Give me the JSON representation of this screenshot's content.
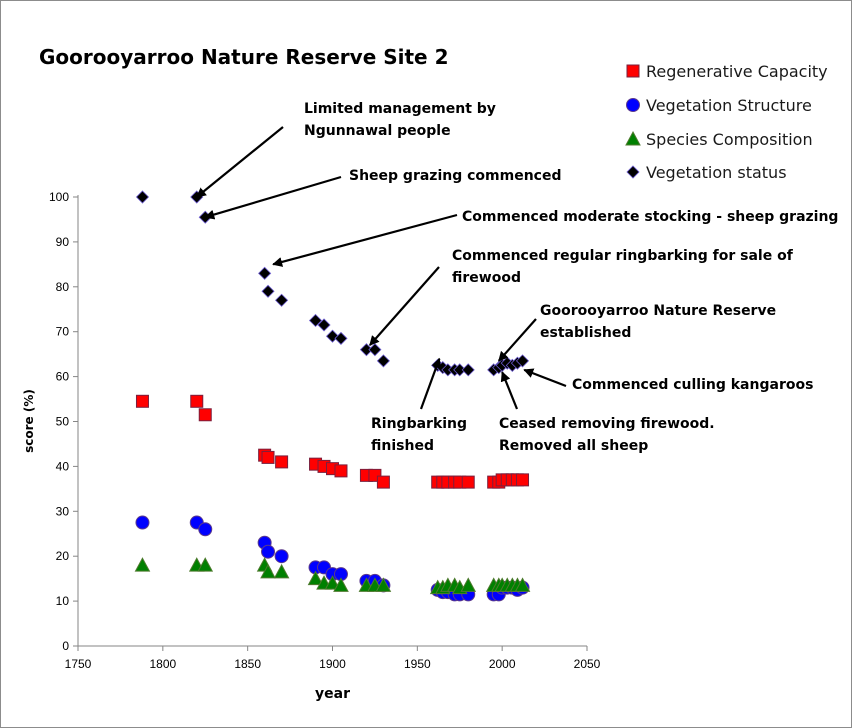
{
  "chart_data": {
    "type": "scatter",
    "title": "Goorooyarroo Nature Reserve Site 2",
    "xlabel": "year",
    "ylabel": "score (%)",
    "xlim": [
      1750,
      2050
    ],
    "ylim": [
      0,
      100
    ],
    "x_ticks": [
      "1750",
      "1800",
      "1850",
      "1900",
      "1950",
      "2000",
      "2050"
    ],
    "y_ticks": [
      "0",
      "10",
      "20",
      "30",
      "40",
      "50",
      "60",
      "70",
      "80",
      "90",
      "100"
    ],
    "grid": false,
    "legend_position": "top-right",
    "series": [
      {
        "name": "Regenerative Capacity",
        "marker": "square",
        "color": "#ff0000",
        "points": [
          [
            1788,
            54.5
          ],
          [
            1820,
            54.5
          ],
          [
            1825,
            51.5
          ],
          [
            1860,
            42.5
          ],
          [
            1862,
            42
          ],
          [
            1870,
            41
          ],
          [
            1890,
            40.5
          ],
          [
            1895,
            40
          ],
          [
            1900,
            39.5
          ],
          [
            1905,
            39
          ],
          [
            1920,
            38
          ],
          [
            1925,
            38
          ],
          [
            1930,
            36.5
          ],
          [
            1962,
            36.5
          ],
          [
            1965,
            36.5
          ],
          [
            1968,
            36.5
          ],
          [
            1972,
            36.5
          ],
          [
            1975,
            36.5
          ],
          [
            1980,
            36.5
          ],
          [
            1995,
            36.5
          ],
          [
            1998,
            36.5
          ],
          [
            2000,
            37
          ],
          [
            2003,
            37
          ],
          [
            2006,
            37
          ],
          [
            2009,
            37
          ],
          [
            2012,
            37
          ]
        ]
      },
      {
        "name": "Vegetation Structure",
        "marker": "circle",
        "color": "#0000ff",
        "points": [
          [
            1788,
            27.5
          ],
          [
            1820,
            27.5
          ],
          [
            1825,
            26
          ],
          [
            1860,
            23
          ],
          [
            1862,
            21
          ],
          [
            1870,
            20
          ],
          [
            1890,
            17.5
          ],
          [
            1895,
            17.5
          ],
          [
            1900,
            16
          ],
          [
            1905,
            16
          ],
          [
            1920,
            14.5
          ],
          [
            1925,
            14.5
          ],
          [
            1930,
            13.5
          ],
          [
            1962,
            12.5
          ],
          [
            1965,
            12
          ],
          [
            1968,
            12
          ],
          [
            1972,
            11.5
          ],
          [
            1975,
            11.5
          ],
          [
            1980,
            11.5
          ],
          [
            1995,
            11.5
          ],
          [
            1998,
            11.5
          ],
          [
            2000,
            13
          ],
          [
            2003,
            13
          ],
          [
            2006,
            13
          ],
          [
            2009,
            12.5
          ],
          [
            2012,
            13
          ]
        ]
      },
      {
        "name": "Species Composition",
        "marker": "triangle",
        "color": "#008000",
        "points": [
          [
            1788,
            18
          ],
          [
            1820,
            18
          ],
          [
            1825,
            18
          ],
          [
            1860,
            18
          ],
          [
            1862,
            16.5
          ],
          [
            1870,
            16.5
          ],
          [
            1890,
            15
          ],
          [
            1895,
            14
          ],
          [
            1900,
            14
          ],
          [
            1905,
            13.5
          ],
          [
            1920,
            13.5
          ],
          [
            1925,
            13.5
          ],
          [
            1930,
            13.5
          ],
          [
            1962,
            13
          ],
          [
            1965,
            13
          ],
          [
            1968,
            13.5
          ],
          [
            1972,
            13.5
          ],
          [
            1975,
            13
          ],
          [
            1980,
            13.5
          ],
          [
            1995,
            13.5
          ],
          [
            1998,
            13.5
          ],
          [
            2000,
            13.5
          ],
          [
            2003,
            13.5
          ],
          [
            2006,
            13.5
          ],
          [
            2009,
            13.5
          ],
          [
            2012,
            13.5
          ]
        ]
      },
      {
        "name": "Vegetation status",
        "marker": "diamond",
        "color": "#000000",
        "points": [
          [
            1788,
            100
          ],
          [
            1820,
            100
          ],
          [
            1825,
            95.5
          ],
          [
            1860,
            83
          ],
          [
            1862,
            79
          ],
          [
            1870,
            77
          ],
          [
            1890,
            72.5
          ],
          [
            1895,
            71.5
          ],
          [
            1900,
            69
          ],
          [
            1905,
            68.5
          ],
          [
            1920,
            66
          ],
          [
            1925,
            66
          ],
          [
            1930,
            63.5
          ],
          [
            1962,
            62.5
          ],
          [
            1965,
            62
          ],
          [
            1968,
            61.5
          ],
          [
            1972,
            61.5
          ],
          [
            1975,
            61.5
          ],
          [
            1980,
            61.5
          ],
          [
            1995,
            61.5
          ],
          [
            1998,
            62
          ],
          [
            2000,
            62.5
          ],
          [
            2003,
            63
          ],
          [
            2006,
            62.5
          ],
          [
            2009,
            63
          ],
          [
            2012,
            63.5
          ]
        ]
      }
    ],
    "annotations": [
      {
        "lines": [
          "Limited management by",
          "Ngunnawal people"
        ],
        "arrow_to": [
          1820,
          100
        ]
      },
      {
        "lines": [
          "Sheep grazing commenced"
        ],
        "arrow_to": [
          1825,
          95.5
        ]
      },
      {
        "lines": [
          "Commenced moderate stocking - sheep grazing"
        ],
        "arrow_to": [
          1865,
          85
        ]
      },
      {
        "lines": [
          "Commenced regular ringbarking for sale of",
          "firewood"
        ],
        "arrow_to": [
          1922,
          67
        ]
      },
      {
        "lines": [
          "Goorooyarroo Nature Reserve",
          "established"
        ],
        "arrow_to": [
          1998,
          63.5
        ]
      },
      {
        "lines": [
          "Commenced culling kangaroos"
        ],
        "arrow_to": [
          2013,
          61.5
        ]
      },
      {
        "lines": [
          "Ringbarking",
          "finished"
        ],
        "arrow_to": [
          1963,
          64
        ]
      },
      {
        "lines": [
          "Ceased removing firewood.",
          "Removed all sheep"
        ],
        "arrow_to": [
          2000,
          61
        ]
      }
    ]
  }
}
